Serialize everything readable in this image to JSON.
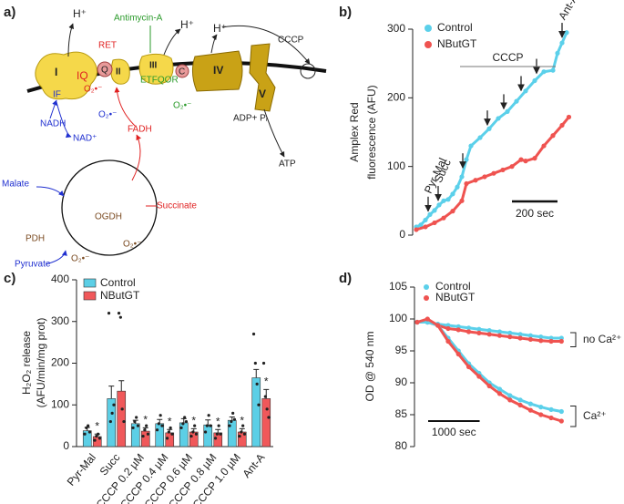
{
  "panel_labels": [
    "a)",
    "b)",
    "c)",
    "d)"
  ],
  "diagram": {
    "h_plus_1": "H⁺",
    "ret": "RET",
    "antimycin": "Antimycin-A",
    "h_plus_2": "H⁺",
    "h_plus_3": "H⁺",
    "cccp": "CCCP",
    "complex_1": "I",
    "iq": "IQ",
    "q": "Q",
    "complex_2": "II",
    "complex_3": "III",
    "c": "C",
    "complex_4": "IV",
    "complex_5": "V",
    "etfqor": "ETFQOR",
    "if": "IF",
    "o2_1": "O₂•⁻",
    "o2_2": "O₂•⁻",
    "o2_3": "O₂•⁻",
    "o2_4": "O₂•⁻",
    "o2_5": "O₂•⁻",
    "nadh": "NADH",
    "nad": "NAD⁺",
    "fadh": "FADH",
    "adp": "ADP+ Pᵢ",
    "atp": "ATP",
    "malate": "Malate",
    "ogdh": "OGDH",
    "succinate": "Succinate",
    "pdh": "PDH",
    "pyruvate": "Pyruvate"
  },
  "chart_data": [
    {
      "type": "line",
      "ylabel": [
        "Amplex Red",
        "fluorescence (AFU)"
      ],
      "xlim": [
        0,
        680
      ],
      "ylim": [
        0,
        300
      ],
      "yticks": [
        0,
        100,
        200,
        300
      ],
      "series": [
        {
          "name": "Control",
          "color": "#5bd0ea",
          "x": [
            0,
            20,
            40,
            60,
            80,
            100,
            120,
            140,
            160,
            180,
            200,
            220,
            240,
            280,
            320,
            360,
            400,
            440,
            480,
            520,
            560,
            600,
            620,
            640,
            660
          ],
          "values": [
            12,
            15,
            22,
            30,
            36,
            44,
            50,
            52,
            60,
            70,
            85,
            110,
            130,
            142,
            155,
            170,
            180,
            195,
            210,
            225,
            238,
            240,
            265,
            280,
            295
          ]
        },
        {
          "name": "NButGT",
          "color": "#ef5350",
          "x": [
            0,
            40,
            80,
            120,
            160,
            200,
            220,
            260,
            300,
            340,
            380,
            420,
            460,
            480,
            520,
            560,
            600,
            640,
            670
          ],
          "values": [
            8,
            12,
            18,
            25,
            35,
            50,
            75,
            80,
            85,
            90,
            95,
            100,
            110,
            108,
            112,
            130,
            145,
            160,
            172
          ]
        }
      ],
      "pyr_mal": {
        "label": "Pyr-Mal",
        "x": 52
      },
      "succ": {
        "label": "Succ",
        "x": 96
      },
      "cccp": {
        "label": "CCCP",
        "start": 192,
        "end": 612,
        "additions": [
          204,
          312,
          384,
          460,
          528
        ]
      },
      "ant_a": {
        "label": "Ant-A",
        "x": 640
      },
      "scale_bar": {
        "value": 200,
        "label": "200 sec"
      }
    },
    {
      "type": "bar",
      "ylabel": [
        "H₂O₂ release",
        "(AFU/min/mg prot)"
      ],
      "ylim": [
        0,
        400
      ],
      "yticks": [
        0,
        100,
        200,
        300,
        400
      ],
      "categories": [
        "Pyr-Mal",
        "Succ",
        "CCCP 0.2 µM",
        "CCCP 0.4 µM",
        "CCCP 0.6 µM",
        "CCCP 0.8 µM",
        "CCCP 1.0 µM",
        "Ant-A"
      ],
      "series": [
        {
          "name": "Control",
          "color": "#5ccfe6",
          "values": [
            38,
            115,
            55,
            55,
            57,
            52,
            63,
            165
          ],
          "errors": [
            8,
            30,
            8,
            10,
            10,
            12,
            8,
            20
          ],
          "points": [
            [
              30,
              45,
              50,
              35
            ],
            [
              320,
              60,
              80,
              100
            ],
            [
              45,
              60,
              70,
              50
            ],
            [
              40,
              55,
              75,
              50
            ],
            [
              45,
              55,
              70,
              60
            ],
            [
              35,
              50,
              75,
              50
            ],
            [
              50,
              60,
              80,
              65
            ],
            [
              270,
              200,
              150,
              100
            ]
          ]
        },
        {
          "name": "NButGT",
          "color": "#f0585a",
          "values": [
            24,
            133,
            37,
            33,
            35,
            33,
            35,
            115
          ],
          "errors": [
            6,
            25,
            8,
            8,
            8,
            8,
            8,
            22
          ],
          "points": [
            [
              15,
              25,
              30,
              20
            ],
            [
              320,
              310,
              90,
              60
            ],
            [
              25,
              40,
              50,
              30
            ],
            [
              20,
              35,
              45,
              30
            ],
            [
              25,
              35,
              50,
              30
            ],
            [
              20,
              30,
              50,
              30
            ],
            [
              25,
              35,
              50,
              30
            ],
            [
              200,
              120,
              90,
              70
            ]
          ],
          "significance": [
            "*",
            null,
            "*",
            "*",
            "*",
            "*",
            "*",
            "*"
          ]
        }
      ]
    },
    {
      "type": "line",
      "ylabel": "OD @ 540 nm",
      "xlim": [
        0,
        2900
      ],
      "ylim": [
        80,
        105
      ],
      "yticks": [
        80,
        85,
        90,
        95,
        100,
        105
      ],
      "legend": [
        {
          "name": "Control",
          "color": "#5bd0ea"
        },
        {
          "name": "NButGT",
          "color": "#ef5350"
        }
      ],
      "x": [
        0,
        200,
        400,
        600,
        800,
        1000,
        1200,
        1400,
        1600,
        1800,
        2000,
        2200,
        2400,
        2600,
        2800
      ],
      "conditions": [
        {
          "label": "no Ca²⁺",
          "series": [
            {
              "values": [
                99.5,
                99.5,
                99.2,
                99,
                98.8,
                98.6,
                98.4,
                98.2,
                98,
                97.8,
                97.6,
                97.4,
                97.2,
                97,
                97
              ]
            },
            {
              "values": [
                99.5,
                99.5,
                99,
                98.5,
                98.3,
                98,
                97.8,
                97.6,
                97.4,
                97.2,
                97,
                96.8,
                96.6,
                96.5,
                96.5
              ]
            }
          ]
        },
        {
          "label": "Ca²⁺",
          "series": [
            {
              "values": [
                99.5,
                99.5,
                99,
                97,
                95,
                93,
                91.5,
                90,
                89,
                88,
                87.3,
                86.7,
                86.2,
                85.8,
                85.5
              ]
            },
            {
              "values": [
                99.5,
                100,
                99,
                96.5,
                94.5,
                92.5,
                91,
                89.5,
                88.3,
                87.3,
                86.5,
                85.7,
                85,
                84.5,
                84
              ]
            }
          ]
        }
      ],
      "scale_bar": {
        "value": 1000,
        "label": "1000 sec"
      }
    }
  ]
}
